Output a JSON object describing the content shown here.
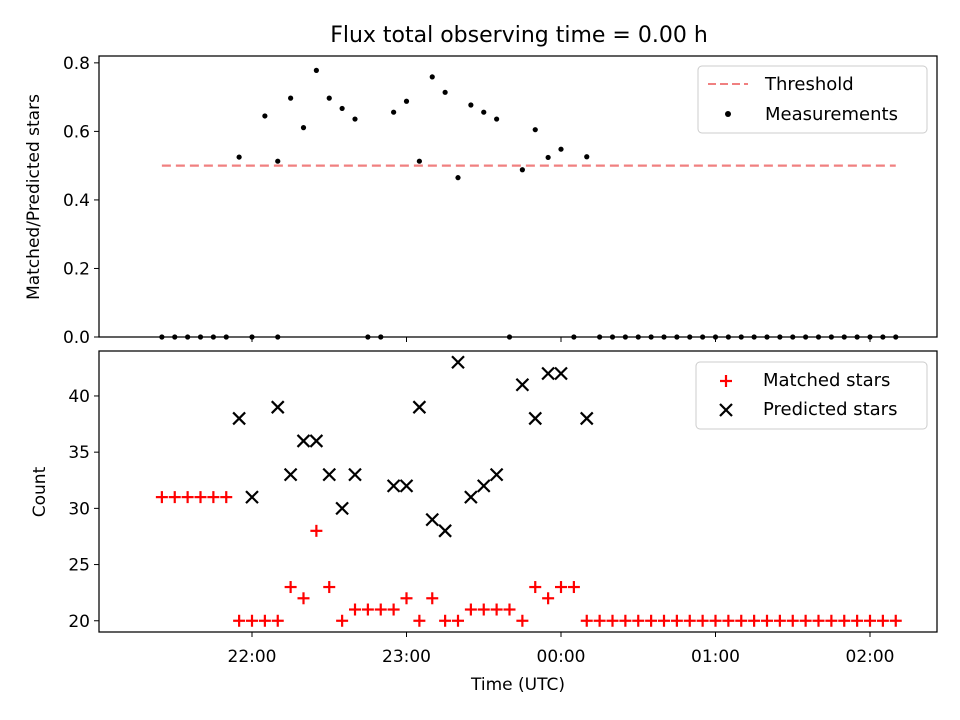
{
  "figure": {
    "title": "Flux total observing time = 0.00 h"
  },
  "chart_data": [
    {
      "type": "scatter",
      "panel": "top",
      "xlabel": "",
      "ylabel": "Matched/Predicted stars",
      "ylim": [
        0.0,
        0.82
      ],
      "yticks": [
        0.0,
        0.2,
        0.4,
        0.6,
        0.8
      ],
      "ytick_labels": [
        "0.0",
        "0.2",
        "0.4",
        "0.6",
        "0.8"
      ],
      "legend_position": "upper right",
      "threshold": {
        "name": "Threshold",
        "y": 0.5,
        "x_start": "21:25",
        "x_end": "02:10",
        "color": "#f08080",
        "style": "dashed"
      },
      "series": [
        {
          "name": "Measurements",
          "color": "#000000",
          "points": [
            [
              "21:25",
              0.0
            ],
            [
              "21:30",
              0.0
            ],
            [
              "21:35",
              0.0
            ],
            [
              "21:40",
              0.0
            ],
            [
              "21:45",
              0.0
            ],
            [
              "21:50",
              0.0
            ],
            [
              "21:55",
              0.53
            ],
            [
              "22:00",
              0.0
            ],
            [
              "21:55",
              0.0
            ],
            [
              "21:50",
              0.0
            ],
            [
              "21:55",
              0.525
            ],
            [
              "22:00",
              0.645
            ],
            [
              "22:05",
              0.0
            ],
            [
              "22:10",
              0.513
            ],
            [
              "22:15",
              0.697
            ],
            [
              "22:20",
              0.611
            ],
            [
              "22:25",
              0.778
            ],
            [
              "22:30",
              0.697
            ],
            [
              "22:35",
              0.667
            ],
            [
              "22:40",
              0.636
            ],
            [
              "22:45",
              0.0
            ],
            [
              "22:50",
              0.0
            ],
            [
              "22:55",
              0.656
            ],
            [
              "23:00",
              0.688
            ],
            [
              "23:05",
              0.513
            ],
            [
              "23:10",
              0.759
            ],
            [
              "23:15",
              0.714
            ],
            [
              "23:20",
              0.465
            ],
            [
              "23:25",
              0.677
            ],
            [
              "23:30",
              0.656
            ],
            [
              "23:35",
              0.636
            ],
            [
              "23:40",
              0.0
            ],
            [
              "23:45",
              0.488
            ],
            [
              "23:50",
              0.605
            ],
            [
              "23:55",
              0.524
            ],
            [
              "00:00",
              0.548
            ],
            [
              "00:05",
              0.0
            ],
            [
              "00:10",
              0.526
            ]
          ]
        }
      ]
    },
    {
      "type": "scatter",
      "panel": "bottom",
      "xlabel": "Time (UTC)",
      "ylabel": "Count",
      "ylim": [
        19.0,
        44.0
      ],
      "yticks": [
        20,
        25,
        30,
        35,
        40
      ],
      "ytick_labels": [
        "20",
        "25",
        "30",
        "35",
        "40"
      ],
      "xtick_labels": [
        "22:00",
        "23:00",
        "00:00",
        "01:00",
        "02:00"
      ],
      "legend_position": "upper right",
      "series": [
        {
          "name": "Matched stars",
          "color": "#ff0000",
          "marker": "plus",
          "points": []
        },
        {
          "name": "Predicted stars",
          "color": "#000000",
          "marker": "x",
          "points": []
        }
      ]
    }
  ]
}
